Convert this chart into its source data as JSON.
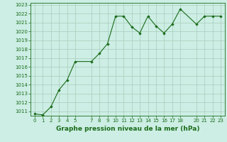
{
  "x": [
    0,
    1,
    2,
    3,
    4,
    5,
    7,
    8,
    9,
    10,
    11,
    12,
    13,
    14,
    15,
    16,
    17,
    18,
    20,
    21,
    22,
    23
  ],
  "y": [
    1010.7,
    1010.6,
    1011.5,
    1013.4,
    1014.5,
    1016.6,
    1016.6,
    1017.5,
    1018.6,
    1021.7,
    1021.7,
    1020.5,
    1019.8,
    1021.7,
    1020.6,
    1019.8,
    1020.8,
    1022.5,
    1020.8,
    1021.7,
    1021.7,
    1021.7
  ],
  "ylim": [
    1010.5,
    1023.2
  ],
  "yticks": [
    1011,
    1012,
    1013,
    1014,
    1015,
    1016,
    1017,
    1018,
    1019,
    1020,
    1021,
    1022,
    1023
  ],
  "xticks": [
    0,
    1,
    2,
    3,
    4,
    5,
    7,
    8,
    9,
    10,
    11,
    12,
    13,
    14,
    15,
    16,
    17,
    18,
    20,
    21,
    22,
    23
  ],
  "xlabel": "Graphe pression niveau de la mer (hPa)",
  "line_color": "#1a6b1a",
  "marker": "D",
  "marker_size": 1.8,
  "bg_color": "#cceee4",
  "grid_color": "#aaccbb",
  "xlabel_fontsize": 6.5,
  "tick_fontsize": 5.0
}
